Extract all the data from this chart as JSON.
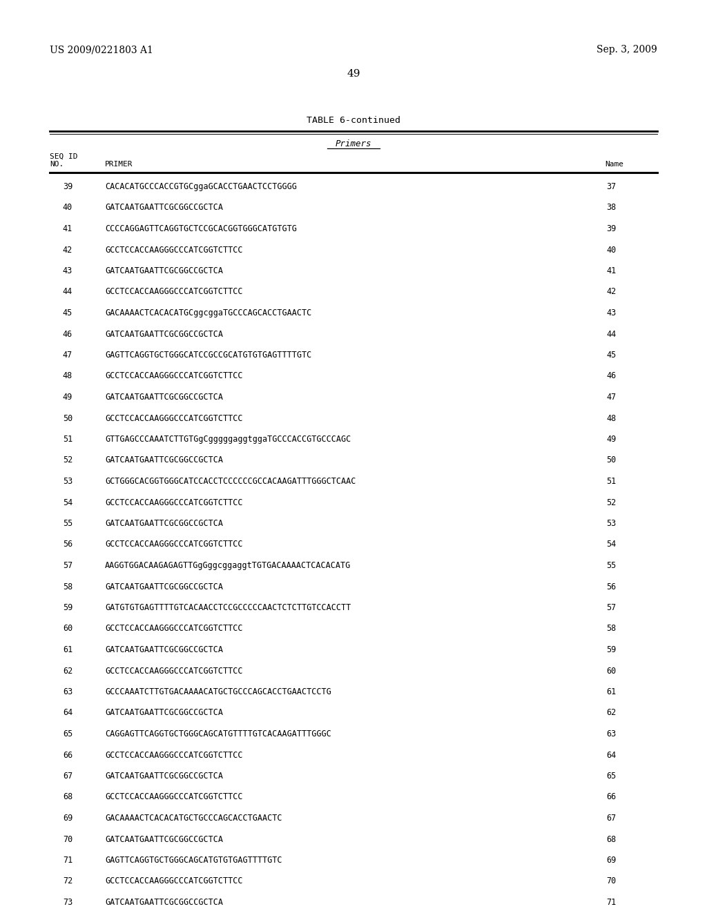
{
  "header_left": "US 2009/0221803 A1",
  "header_right": "Sep. 3, 2009",
  "page_number": "49",
  "table_title": "TABLE 6-continued",
  "section_label": "Primers",
  "rows": [
    [
      "39",
      "CACACATGCCCACCGTGCggaGCACCTGAACTCCTGGGG",
      "37"
    ],
    [
      "40",
      "GATCAATGAATTCGCGGCCGCTCA",
      "38"
    ],
    [
      "41",
      "CCCCAGGAGTTCAGGTGCTCCGCACGGTGGGCATGTGTG",
      "39"
    ],
    [
      "42",
      "GCCTCCACCAAGGGCCCATCGGTCTTCC",
      "40"
    ],
    [
      "43",
      "GATCAATGAATTCGCGGCCGCTCA",
      "41"
    ],
    [
      "44",
      "GCCTCCACCAAGGGCCCATCGGTCTTCC",
      "42"
    ],
    [
      "45",
      "GACAAAACTCACACATGCggcggaTGCCCAGCACCTGAACTC",
      "43"
    ],
    [
      "46",
      "GATCAATGAATTCGCGGCCGCTCA",
      "44"
    ],
    [
      "47",
      "GAGTTCAGGTGCTGGGCATCCGCCGCATGTGTGAGTTTTGTC",
      "45"
    ],
    [
      "48",
      "GCCTCCACCAAGGGCCCATCGGTCTTCC",
      "46"
    ],
    [
      "49",
      "GATCAATGAATTCGCGGCCGCTCA",
      "47"
    ],
    [
      "50",
      "GCCTCCACCAAGGGCCCATCGGTCTTCC",
      "48"
    ],
    [
      "51",
      "GTTGAGCCCAAATCTTGTGgCgggggaggtggaTGCCCACCGTGCCCAGC",
      "49"
    ],
    [
      "52",
      "GATCAATGAATTCGCGGCCGCTCA",
      "50"
    ],
    [
      "53",
      "GCTGGGCACGGTGGGCATCCACCTCCCCCCGCCACAAGATTTGGGCTCAAC",
      "51"
    ],
    [
      "54",
      "GCCTCCACCAAGGGCCCATCGGTCTTCC",
      "52"
    ],
    [
      "55",
      "GATCAATGAATTCGCGGCCGCTCA",
      "53"
    ],
    [
      "56",
      "GCCTCCACCAAGGGCCCATCGGTCTTCC",
      "54"
    ],
    [
      "57",
      "AAGGTGGACAAGAGAGTTGgGggcggaggtTGTGACAAAACTCACACATG",
      "55"
    ],
    [
      "58",
      "GATCAATGAATTCGCGGCCGCTCA",
      "56"
    ],
    [
      "59",
      "GATGTGTGAGTTTTGTCACAACCTCCGCCCCCAACTCTCTTGTCCACCTT",
      "57"
    ],
    [
      "60",
      "GCCTCCACCAAGGGCCCATCGGTCTTCC",
      "58"
    ],
    [
      "61",
      "GATCAATGAATTCGCGGCCGCTCA",
      "59"
    ],
    [
      "62",
      "GCCTCCACCAAGGGCCCATCGGTCTTCC",
      "60"
    ],
    [
      "63",
      "GCCCAAATCTTGTGACAAAACATGCTGCCCAGCACCTGAACTCCTG",
      "61"
    ],
    [
      "64",
      "GATCAATGAATTCGCGGCCGCTCA",
      "62"
    ],
    [
      "65",
      "CAGGAGTTCAGGTGCTGGGCAGCATGTTTTGTCACAAGATTTGGGC",
      "63"
    ],
    [
      "66",
      "GCCTCCACCAAGGGCCCATCGGTCTTCC",
      "64"
    ],
    [
      "67",
      "GATCAATGAATTCGCGGCCGCTCA",
      "65"
    ],
    [
      "68",
      "GCCTCCACCAAGGGCCCATCGGTCTTCC",
      "66"
    ],
    [
      "69",
      "GACAAAACTCACACATGCTGCCCAGCACCTGAACTC",
      "67"
    ],
    [
      "70",
      "GATCAATGAATTCGCGGCCGCTCA",
      "68"
    ],
    [
      "71",
      "GAGTTCAGGTGCTGGGCAGCATGTGTGAGTTTTGTC",
      "69"
    ],
    [
      "72",
      "GCCTCCACCAAGGGCCCATCGGTCTTCC",
      "70"
    ],
    [
      "73",
      "GATCAATGAATTCGCGGCCGCTCA",
      "71"
    ]
  ],
  "background_color": "#ffffff",
  "text_color": "#000000"
}
